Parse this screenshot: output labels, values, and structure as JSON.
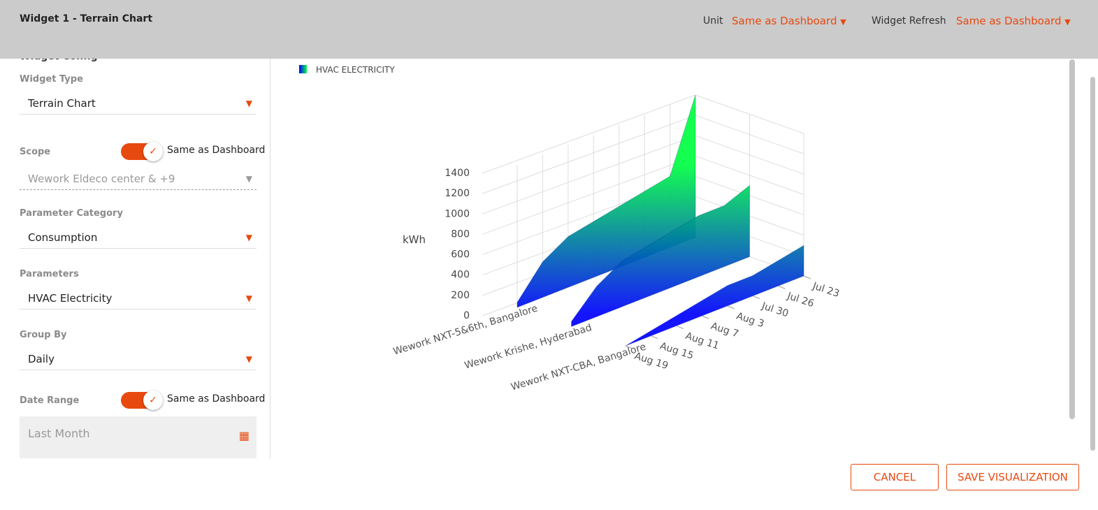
{
  "header": {
    "title": "Widget 1 - Terrain Chart",
    "unit_label": "Unit",
    "unit_value": "Same as Dashboard",
    "refresh_label": "Widget Refresh",
    "refresh_value": "Same as Dashboard"
  },
  "config": {
    "heading": "Widget Config",
    "widget_type": {
      "label": "Widget Type",
      "value": "Terrain Chart"
    },
    "scope": {
      "label": "Scope",
      "toggle": "Same as Dashboard",
      "value": "Wework Eldeco center & +9"
    },
    "parameter_category": {
      "label": "Parameter Category",
      "value": "Consumption"
    },
    "parameters": {
      "label": "Parameters",
      "value": "HVAC Electricity"
    },
    "group_by": {
      "label": "Group By",
      "value": "Daily"
    },
    "date_range": {
      "label": "Date Range",
      "toggle": "Same as Dashboard",
      "value": "Last Month"
    }
  },
  "chart_data": {
    "type": "surface3d",
    "legend": "HVAC ELECTRICITY",
    "z_label": "kWh",
    "colorscale": [
      "#0000ff",
      "#00ff40"
    ],
    "zlim": [
      0,
      1400
    ],
    "zticks": [
      0,
      200,
      400,
      600,
      800,
      1000,
      1200,
      1400
    ],
    "dates": [
      "Jul 23",
      "Jul 26",
      "Jul 30",
      "Aug 3",
      "Aug 7",
      "Aug 11",
      "Aug 15",
      "Aug 19"
    ],
    "series": [
      {
        "name": "Wework NXT-5&6th, Bangalore",
        "values": [
          1400,
          700,
          650,
          600,
          550,
          500,
          350,
          50
        ]
      },
      {
        "name": "Wework Krishe, Hyderabad",
        "values": [
          700,
          600,
          600,
          550,
          500,
          450,
          300,
          50
        ]
      },
      {
        "name": "Wework NXT-CBA, Bangalore",
        "values": [
          300,
          250,
          200,
          200,
          150,
          100,
          50,
          0
        ]
      }
    ]
  },
  "buttons": {
    "cancel": "CANCEL",
    "save": "SAVE VISUALIZATION"
  }
}
